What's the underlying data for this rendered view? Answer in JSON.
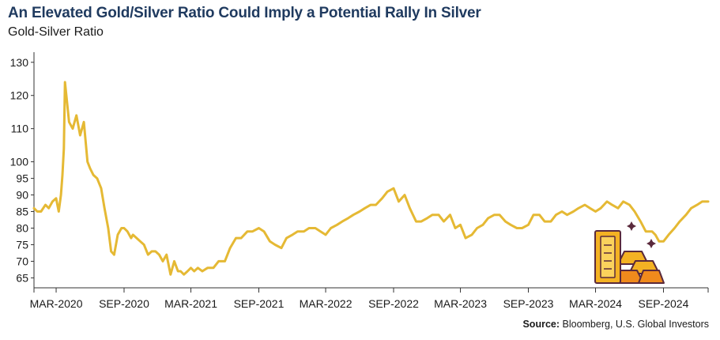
{
  "title": "An Elevated Gold/Silver Ratio Could Imply a Potential Rally In Silver",
  "subtitle": "Gold-Silver Ratio",
  "source": {
    "label": "Source:",
    "text": "Bloomberg, U.S. Global Investors"
  },
  "colors": {
    "line": "#e5b934",
    "title": "#1f3a5f",
    "axis": "#333333",
    "icon_gold": "#f4b223",
    "icon_orange": "#f08a1c",
    "icon_outline": "#5a2a3c"
  },
  "icon": "gold-bars-icon",
  "chart_data": {
    "type": "line",
    "title": "",
    "ylabel": "",
    "xlabel": "",
    "grid": false,
    "ylim": [
      62,
      134
    ],
    "xlim": [
      "2020-01-01",
      "2024-12-31"
    ],
    "y_ticks": [
      "65",
      "70",
      "75",
      "80",
      "85",
      "90",
      "95",
      "100",
      "110",
      "120",
      "130"
    ],
    "x_ticks": [
      {
        "label": "MAR-2020",
        "date": "2020-03-01"
      },
      {
        "label": "SEP-2020",
        "date": "2020-09-01"
      },
      {
        "label": "MAR-2021",
        "date": "2021-03-01"
      },
      {
        "label": "SEP-2021",
        "date": "2021-09-01"
      },
      {
        "label": "MAR-2022",
        "date": "2022-03-01"
      },
      {
        "label": "SEP-2022",
        "date": "2022-09-01"
      },
      {
        "label": "MAR-2023",
        "date": "2023-03-01"
      },
      {
        "label": "SEP-2023",
        "date": "2023-09-01"
      },
      {
        "label": "MAR-2024",
        "date": "2024-03-01"
      },
      {
        "label": "SEP-2024",
        "date": "2024-09-01"
      }
    ],
    "series": [
      {
        "x": [
          "2020-01-01",
          "2020-01-10",
          "2020-01-20",
          "2020-02-01",
          "2020-02-10",
          "2020-02-20",
          "2020-03-01",
          "2020-03-08",
          "2020-03-14",
          "2020-03-18",
          "2020-03-22",
          "2020-03-25",
          "2020-04-05",
          "2020-04-15",
          "2020-04-25",
          "2020-05-05",
          "2020-05-15",
          "2020-05-25",
          "2020-06-01",
          "2020-06-10",
          "2020-06-20",
          "2020-07-01",
          "2020-07-10",
          "2020-07-20",
          "2020-07-28",
          "2020-08-05",
          "2020-08-15",
          "2020-08-25",
          "2020-09-01",
          "2020-09-10",
          "2020-09-20",
          "2020-09-25",
          "2020-10-05",
          "2020-10-15",
          "2020-10-25",
          "2020-11-05",
          "2020-11-15",
          "2020-11-25",
          "2020-12-05",
          "2020-12-15",
          "2020-12-25",
          "2021-01-05",
          "2021-01-15",
          "2021-01-25",
          "2021-02-01",
          "2021-02-10",
          "2021-02-20",
          "2021-03-01",
          "2021-03-10",
          "2021-03-20",
          "2021-04-01",
          "2021-04-15",
          "2021-05-01",
          "2021-05-15",
          "2021-06-01",
          "2021-06-15",
          "2021-07-01",
          "2021-07-15",
          "2021-08-01",
          "2021-08-15",
          "2021-09-01",
          "2021-09-15",
          "2021-10-01",
          "2021-10-15",
          "2021-11-01",
          "2021-11-15",
          "2021-12-01",
          "2021-12-15",
          "2022-01-01",
          "2022-01-15",
          "2022-02-01",
          "2022-02-15",
          "2022-03-01",
          "2022-03-15",
          "2022-04-01",
          "2022-04-15",
          "2022-05-01",
          "2022-05-15",
          "2022-06-01",
          "2022-06-15",
          "2022-07-01",
          "2022-07-15",
          "2022-08-01",
          "2022-08-15",
          "2022-09-01",
          "2022-09-15",
          "2022-10-01",
          "2022-10-15",
          "2022-11-01",
          "2022-11-15",
          "2022-12-01",
          "2022-12-15",
          "2023-01-01",
          "2023-01-15",
          "2023-02-01",
          "2023-02-15",
          "2023-03-01",
          "2023-03-15",
          "2023-04-01",
          "2023-04-15",
          "2023-05-01",
          "2023-05-15",
          "2023-06-01",
          "2023-06-15",
          "2023-07-01",
          "2023-07-15",
          "2023-08-01",
          "2023-08-15",
          "2023-09-01",
          "2023-09-15",
          "2023-10-01",
          "2023-10-15",
          "2023-11-01",
          "2023-11-15",
          "2023-12-01",
          "2023-12-15",
          "2024-01-01",
          "2024-01-15",
          "2024-02-01",
          "2024-02-15",
          "2024-03-01",
          "2024-03-15",
          "2024-04-01",
          "2024-04-15",
          "2024-05-01",
          "2024-05-15",
          "2024-06-01",
          "2024-06-15",
          "2024-07-01",
          "2024-07-15",
          "2024-08-01",
          "2024-08-10",
          "2024-08-20",
          "2024-09-01",
          "2024-09-15",
          "2024-10-01",
          "2024-10-15",
          "2024-11-01",
          "2024-11-15",
          "2024-12-01",
          "2024-12-15",
          "2024-12-31"
        ],
        "y": [
          86,
          85,
          85,
          87,
          86,
          88,
          89,
          85,
          90,
          96,
          104,
          124,
          112,
          110,
          114,
          108,
          112,
          100,
          98,
          96,
          95,
          92,
          86,
          80,
          73,
          72,
          78,
          80,
          80,
          79,
          77,
          78,
          77,
          76,
          75,
          72,
          73,
          73,
          72,
          70,
          72,
          66,
          70,
          67,
          67,
          66,
          67,
          68,
          67,
          68,
          67,
          68,
          68,
          70,
          70,
          74,
          77,
          77,
          79,
          79,
          80,
          79,
          76,
          75,
          74,
          77,
          78,
          79,
          79,
          80,
          80,
          79,
          78,
          80,
          81,
          82,
          83,
          84,
          85,
          86,
          87,
          87,
          89,
          91,
          92,
          88,
          90,
          86,
          82,
          82,
          83,
          84,
          84,
          82,
          84,
          80,
          81,
          77,
          78,
          80,
          81,
          83,
          84,
          84,
          82,
          81,
          80,
          80,
          81,
          84,
          84,
          82,
          82,
          84,
          85,
          84,
          85,
          86,
          87,
          86,
          85,
          86,
          88,
          87,
          86,
          88,
          87,
          85,
          82,
          79,
          79,
          78,
          76,
          76,
          78,
          80,
          82,
          84,
          86,
          87,
          88,
          88
        ]
      }
    ]
  }
}
